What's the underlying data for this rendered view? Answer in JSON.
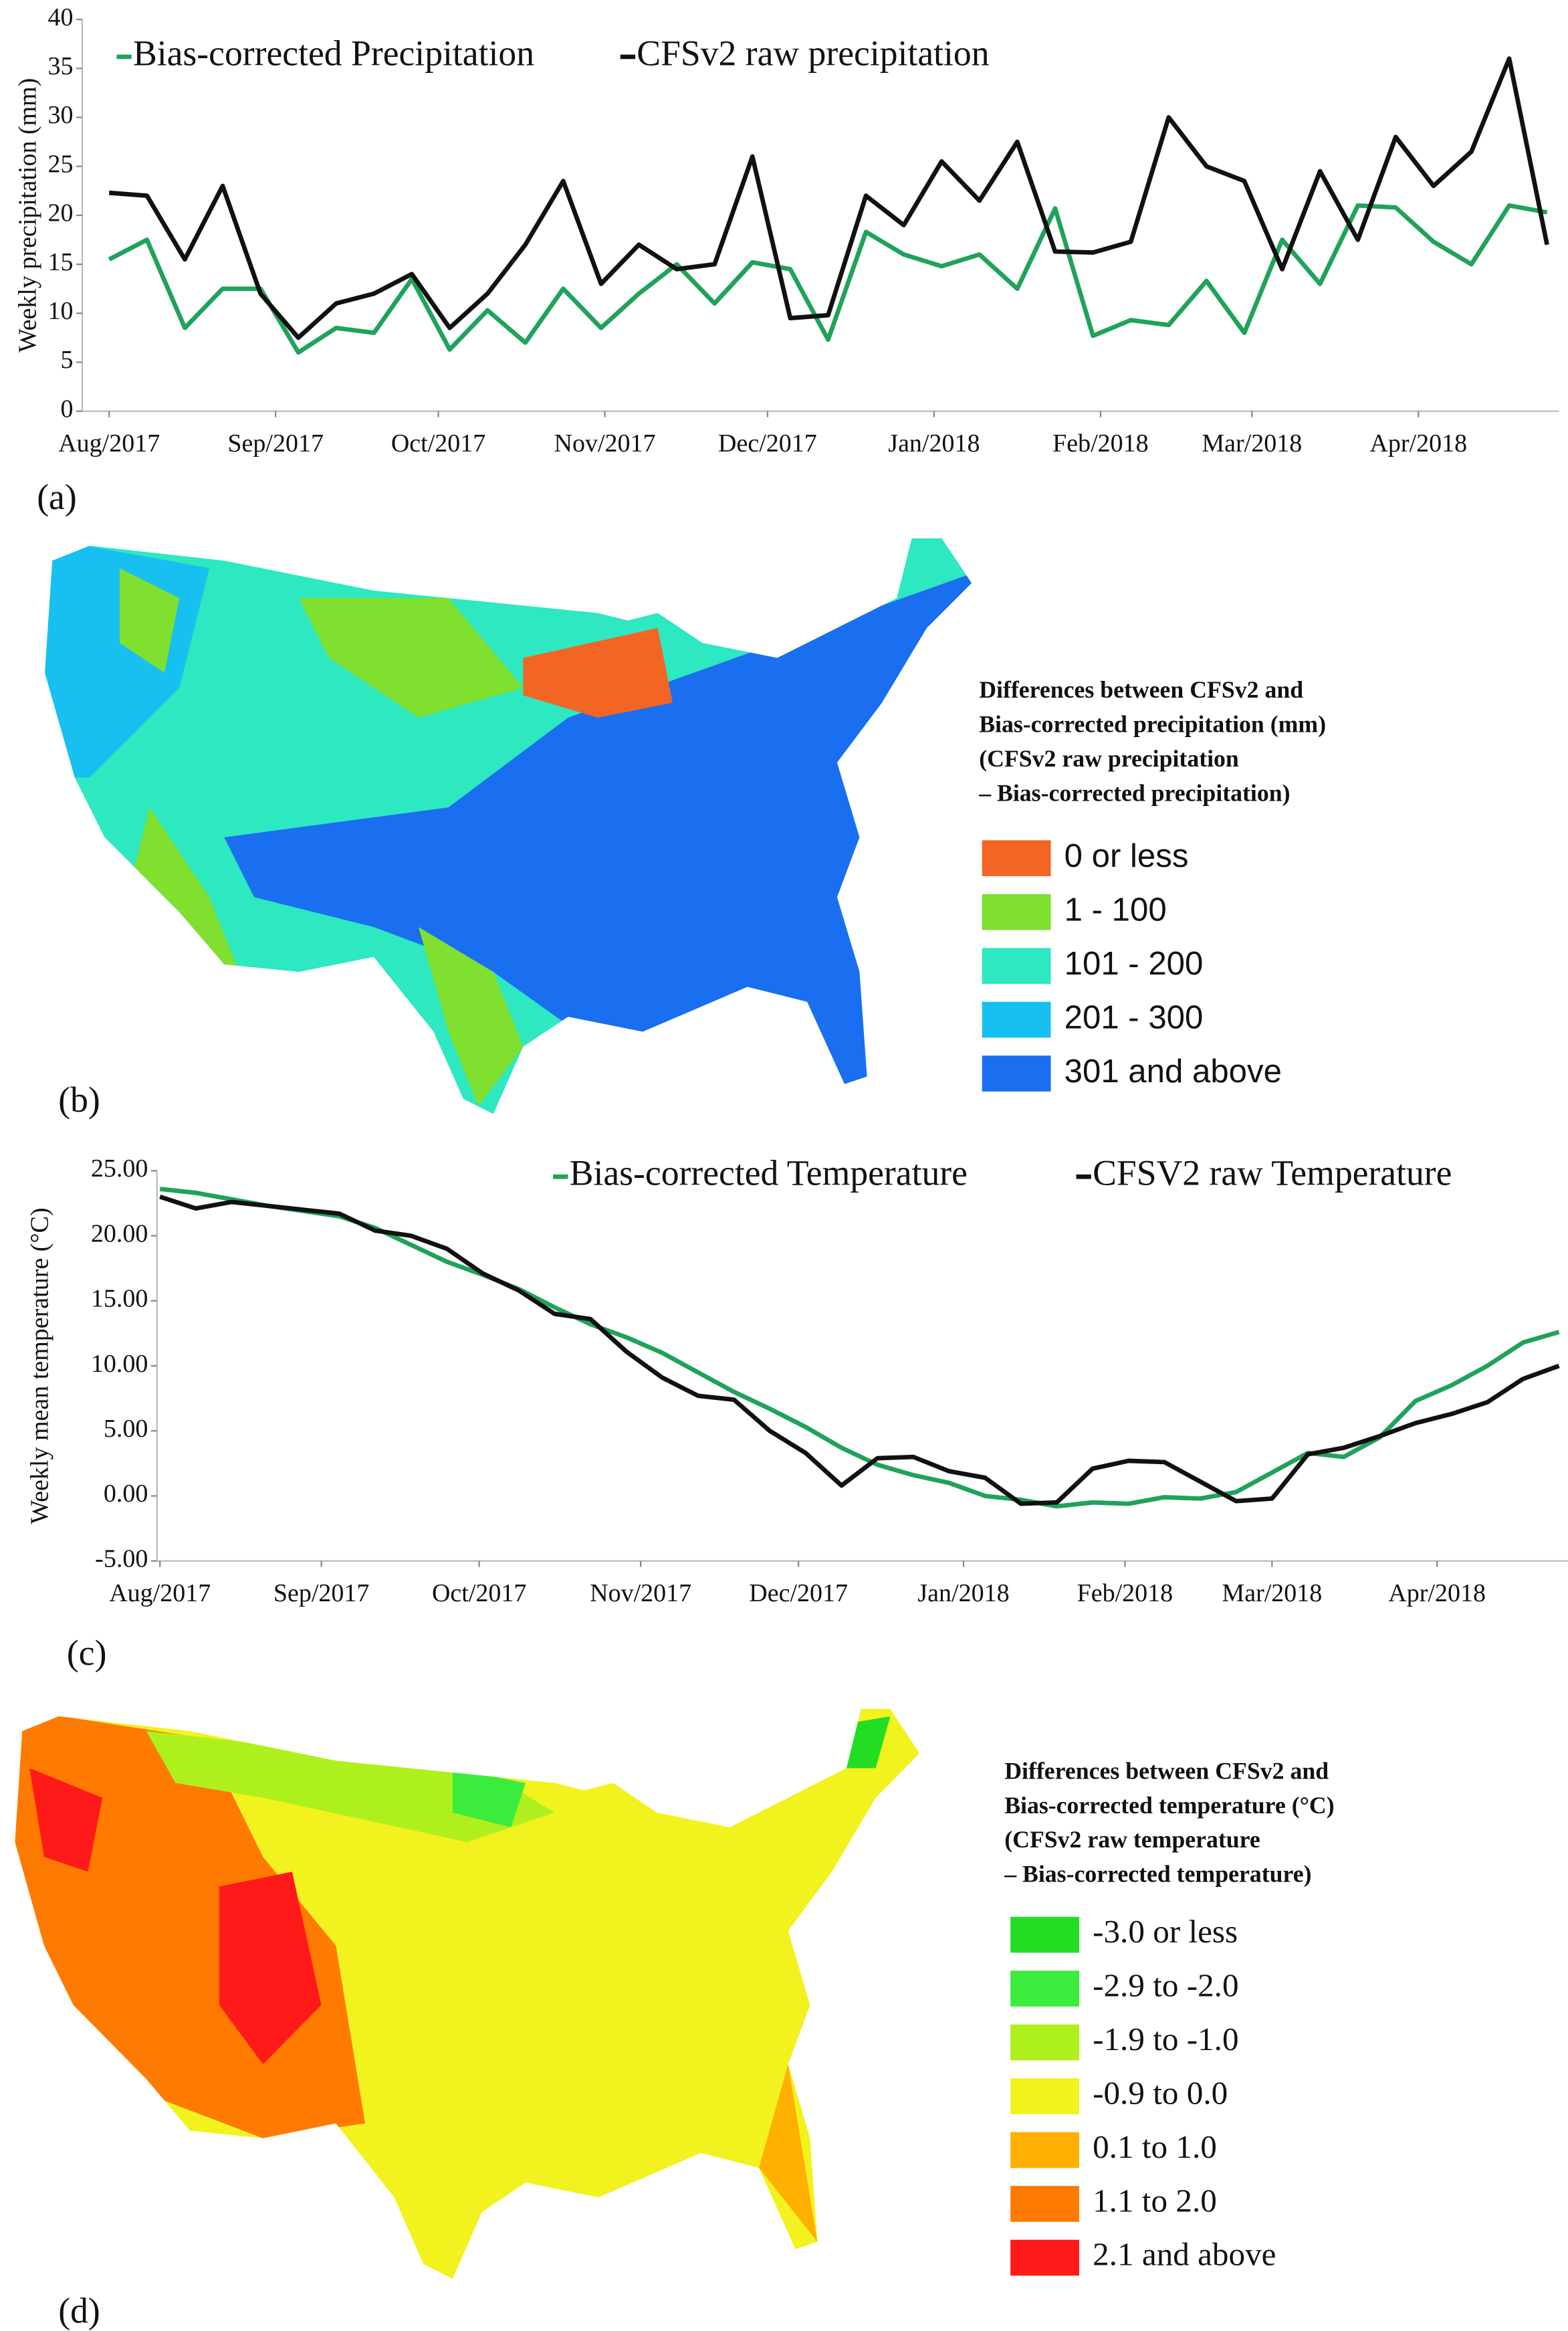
{
  "chart_data": [
    {
      "type": "line",
      "panel_label": "(a)",
      "ylabel": "Weekly precipitation (mm)",
      "xlim": [
        0,
        38
      ],
      "xticks": [
        {
          "value": 0,
          "label": "Aug/2017"
        },
        {
          "value": 4.4,
          "label": "Sep/2017"
        },
        {
          "value": 8.7,
          "label": "Oct/2017"
        },
        {
          "value": 13.1,
          "label": "Nov/2017"
        },
        {
          "value": 17.4,
          "label": "Dec/2017"
        },
        {
          "value": 21.8,
          "label": "Jan/2018"
        },
        {
          "value": 26.2,
          "label": "Feb/2018"
        },
        {
          "value": 30.2,
          "label": "Mar/2018"
        },
        {
          "value": 34.6,
          "label": "Apr/2018"
        }
      ],
      "ylim": [
        0,
        40
      ],
      "yticks": [
        0,
        5,
        10,
        15,
        20,
        25,
        30,
        35,
        40
      ],
      "x": [
        0,
        1,
        2,
        3,
        4,
        5,
        6,
        7,
        8,
        9,
        10,
        11,
        12,
        13,
        14,
        15,
        16,
        17,
        18,
        19,
        20,
        21,
        22,
        23,
        24,
        25,
        26,
        27,
        28,
        29,
        30,
        31,
        32,
        33,
        34,
        35,
        36,
        37,
        38
      ],
      "series": [
        {
          "name": "Bias-corrected Precipitation",
          "color": "#1fa35a",
          "values": [
            15.5,
            17.5,
            8.5,
            12.5,
            12.5,
            6,
            8.5,
            8,
            13.5,
            6.3,
            10.3,
            7,
            12.5,
            8.5,
            12,
            15,
            11,
            15.2,
            14.5,
            7.3,
            18.3,
            16,
            14.8,
            16,
            12.5,
            20.7,
            7.7,
            9.3,
            8.8,
            13.3,
            8,
            17.5,
            13,
            21,
            20.8,
            17.3,
            15,
            21,
            20.3
          ]
        },
        {
          "name": "CFSv2 raw precipitation",
          "color": "#111111",
          "values": [
            22.3,
            22,
            15.5,
            23,
            12,
            7.5,
            11,
            12,
            14,
            8.5,
            12,
            17,
            23.5,
            13,
            17,
            14.5,
            15,
            26,
            9.5,
            9.8,
            22,
            19,
            25.5,
            21.5,
            27.5,
            16.3,
            16.2,
            17.3,
            30,
            25,
            23.5,
            14.5,
            24.5,
            17.5,
            28,
            23,
            26.5,
            36,
            17
          ]
        }
      ]
    },
    {
      "type": "line",
      "panel_label": "(c)",
      "ylabel": "Weekly  mean temperature (°C)",
      "xlim": [
        0,
        39
      ],
      "xticks": [
        {
          "value": 0,
          "label": "Aug/2017"
        },
        {
          "value": 4.5,
          "label": "Sep/2017"
        },
        {
          "value": 8.9,
          "label": "Oct/2017"
        },
        {
          "value": 13.4,
          "label": "Nov/2017"
        },
        {
          "value": 17.8,
          "label": "Dec/2017"
        },
        {
          "value": 22.4,
          "label": "Jan/2018"
        },
        {
          "value": 26.9,
          "label": "Feb/2018"
        },
        {
          "value": 31,
          "label": "Mar/2018"
        },
        {
          "value": 35.6,
          "label": "Apr/2018"
        }
      ],
      "ylim": [
        -5,
        25
      ],
      "yticks": [
        {
          "value": -5,
          "label": "-5.00"
        },
        {
          "value": 0,
          "label": "0.00"
        },
        {
          "value": 5,
          "label": "5.00"
        },
        {
          "value": 10,
          "label": "10.00"
        },
        {
          "value": 15,
          "label": "15.00"
        },
        {
          "value": 20,
          "label": "20.00"
        },
        {
          "value": 25,
          "label": "25.00"
        }
      ],
      "x": [
        0,
        1,
        2,
        3,
        4,
        5,
        6,
        7,
        8,
        9,
        10,
        11,
        12,
        13,
        14,
        15,
        16,
        17,
        18,
        19,
        20,
        21,
        22,
        23,
        24,
        25,
        26,
        27,
        28,
        29,
        30,
        31,
        32,
        33,
        34,
        35,
        36,
        37,
        38,
        39
      ],
      "series": [
        {
          "name": "Bias-corrected Temperature",
          "color": "#1fa35a",
          "values": [
            23.6,
            23.3,
            22.8,
            22.3,
            21.9,
            21.5,
            20.6,
            19.3,
            18,
            17,
            15.9,
            14.5,
            13.2,
            12.2,
            11,
            9.5,
            8,
            6.7,
            5.3,
            3.7,
            2.4,
            1.6,
            1,
            0,
            -0.3,
            -0.8,
            -0.5,
            -0.6,
            -0.1,
            -0.2,
            0.3,
            1.8,
            3.3,
            3,
            4.5,
            7.3,
            8.5,
            10,
            11.8,
            12.6
          ]
        },
        {
          "name": "CFSV2 raw Temperature",
          "color": "#111111",
          "values": [
            23,
            22.1,
            22.6,
            22.3,
            22,
            21.7,
            20.4,
            20,
            19,
            17.1,
            15.8,
            14,
            13.6,
            11.1,
            9.1,
            7.7,
            7.4,
            5,
            3.3,
            0.8,
            2.9,
            3,
            1.9,
            1.4,
            -0.6,
            -0.5,
            2.1,
            2.7,
            2.6,
            1.1,
            -0.4,
            -0.2,
            3.2,
            3.7,
            4.6,
            5.6,
            6.3,
            7.2,
            9,
            10
          ]
        }
      ]
    }
  ],
  "maps": [
    {
      "panel_label": "(b)",
      "legend_title": [
        "Differences between CFSv2 and",
        "Bias-corrected precipitation (mm)",
        "(CFSv2 raw precipitation",
        "– Bias-corrected precipitation)"
      ],
      "legend": [
        {
          "label": "0 or less",
          "color": "#f26522"
        },
        {
          "label": "1 - 100",
          "color": "#7fe030"
        },
        {
          "label": "101 - 200",
          "color": "#2de8c0"
        },
        {
          "label": "201 - 300",
          "color": "#17c0f0"
        },
        {
          "label": "301 and above",
          "color": "#1a6ef0"
        }
      ]
    },
    {
      "panel_label": "(d)",
      "legend_title": [
        "Differences between CFSv2 and",
        "Bias-corrected temperature (°C)",
        "(CFSv2 raw temperature",
        "– Bias-corrected temperature)"
      ],
      "legend": [
        {
          "label": "-3.0 or less",
          "color": "#22dd22"
        },
        {
          "label": "-2.9 to -2.0",
          "color": "#3cec3c"
        },
        {
          "label": "-1.9 to -1.0",
          "color": "#aef01e"
        },
        {
          "label": "-0.9 to 0.0",
          "color": "#f2f21e"
        },
        {
          "label": "0.1 to 1.0",
          "color": "#ffb000"
        },
        {
          "label": "1.1 to 2.0",
          "color": "#ff7a00"
        },
        {
          "label": "2.1 and above",
          "color": "#ff1a1a"
        }
      ]
    }
  ]
}
